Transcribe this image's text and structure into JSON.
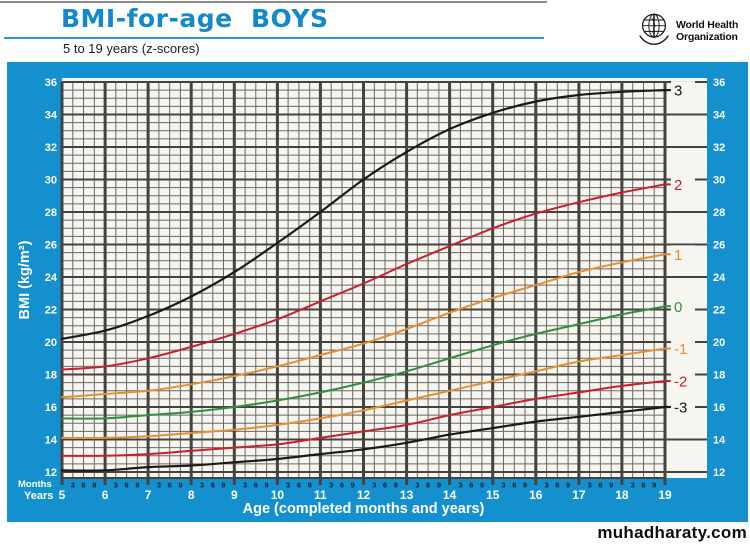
{
  "header": {
    "title": "BMI-for-age  BOYS",
    "subtitle": "5 to 19 years (z-scores)",
    "who": {
      "line1": "World Health",
      "line2": "Organization"
    }
  },
  "footer": {
    "watermark": "muhadharaty.com"
  },
  "colors": {
    "frame_blue": "#1590CF",
    "title_blue": "#1189CC",
    "plot_bg": "#F6F5F0",
    "grid_minor": "#6B6962",
    "grid_major": "#45433D",
    "black_line": "#1A1A1A",
    "red_line": "#C8202C",
    "orange_line": "#E88D30",
    "green_line": "#338E3D",
    "month_digit": "#1C2026",
    "axis_text_white": "#FFFFFF"
  },
  "chart_data": {
    "type": "line",
    "title": "BMI-for-age BOYS, 5 to 19 years (z-scores)",
    "xlabel": "Age (completed months and years)",
    "ylabel": "BMI (kg/m²)",
    "x_axis": {
      "months_row_label": "Months",
      "years_row_label": "Years",
      "years": [
        5,
        6,
        7,
        8,
        9,
        10,
        11,
        12,
        13,
        14,
        15,
        16,
        17,
        18,
        19
      ],
      "month_sublabels": [
        "3",
        "6",
        "9"
      ]
    },
    "ylim": [
      12,
      36
    ],
    "yticks": [
      12,
      14,
      16,
      18,
      20,
      22,
      24,
      26,
      28,
      30,
      32,
      34,
      36
    ],
    "grid": "on",
    "legend_position": "right-edge-labels",
    "x_years": [
      5,
      6,
      7,
      8,
      9,
      10,
      11,
      12,
      13,
      14,
      15,
      16,
      17,
      18,
      19
    ],
    "series": [
      {
        "name": "+3 SD",
        "label": "3",
        "color_key": "black_line",
        "values": [
          20.2,
          20.7,
          21.6,
          22.8,
          24.3,
          26.1,
          28.0,
          30.0,
          31.7,
          33.1,
          34.1,
          34.8,
          35.2,
          35.4,
          35.5
        ]
      },
      {
        "name": "+2 SD",
        "label": "2",
        "color_key": "red_line",
        "values": [
          18.3,
          18.5,
          19.0,
          19.7,
          20.5,
          21.4,
          22.5,
          23.6,
          24.8,
          25.9,
          27.0,
          27.9,
          28.6,
          29.2,
          29.7
        ]
      },
      {
        "name": "+1 SD",
        "label": "1",
        "color_key": "orange_line",
        "values": [
          16.6,
          16.8,
          17.0,
          17.4,
          17.9,
          18.5,
          19.2,
          19.9,
          20.8,
          21.8,
          22.7,
          23.5,
          24.3,
          24.9,
          25.4
        ]
      },
      {
        "name": "0 (median)",
        "label": "0",
        "color_key": "green_line",
        "values": [
          15.3,
          15.3,
          15.5,
          15.7,
          16.0,
          16.4,
          16.9,
          17.5,
          18.2,
          19.0,
          19.8,
          20.5,
          21.1,
          21.7,
          22.2
        ]
      },
      {
        "name": "-1 SD",
        "label": "-1",
        "color_key": "orange_line",
        "values": [
          14.1,
          14.1,
          14.2,
          14.4,
          14.6,
          14.9,
          15.3,
          15.8,
          16.4,
          17.0,
          17.6,
          18.2,
          18.8,
          19.2,
          19.6
        ]
      },
      {
        "name": "-2 SD",
        "label": "-2",
        "color_key": "red_line",
        "values": [
          13.0,
          13.0,
          13.1,
          13.3,
          13.5,
          13.7,
          14.1,
          14.5,
          14.9,
          15.5,
          16.0,
          16.5,
          16.9,
          17.3,
          17.6
        ]
      },
      {
        "name": "-3 SD",
        "label": "-3",
        "color_key": "black_line",
        "values": [
          12.1,
          12.1,
          12.3,
          12.4,
          12.6,
          12.8,
          13.1,
          13.4,
          13.8,
          14.3,
          14.7,
          15.1,
          15.4,
          15.7,
          16.0
        ]
      }
    ]
  }
}
